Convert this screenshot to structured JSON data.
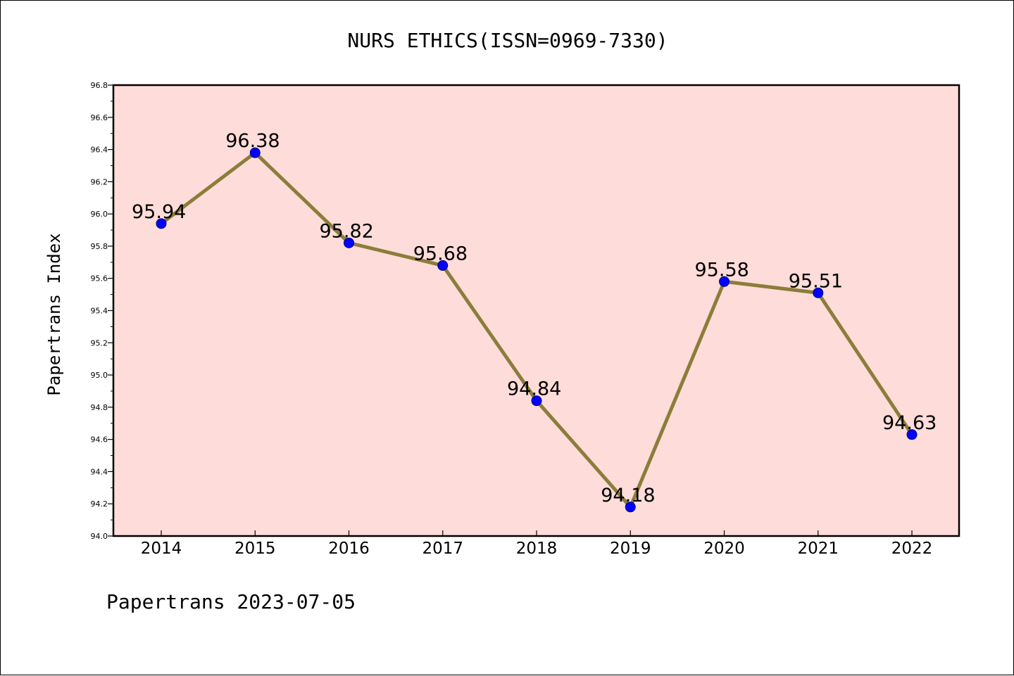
{
  "chart_data": {
    "type": "line",
    "title": "NURS ETHICS(ISSN=0969-7330)",
    "ylabel": "Papertrans Index",
    "xlabel": "",
    "footer": "Papertrans 2023-07-05",
    "categories": [
      "2014",
      "2015",
      "2016",
      "2017",
      "2018",
      "2019",
      "2020",
      "2021",
      "2022"
    ],
    "values": [
      95.94,
      96.38,
      95.82,
      95.68,
      94.84,
      94.18,
      95.58,
      95.51,
      94.63
    ],
    "data_labels": [
      "95.94",
      "96.38",
      "95.82",
      "95.68",
      "94.84",
      "94.18",
      "95.58",
      "95.51",
      "94.63"
    ],
    "ylim": [
      94.0,
      96.8
    ],
    "yticks": [
      "94.0",
      "94.2",
      "94.4",
      "94.6",
      "94.8",
      "95.0",
      "95.2",
      "95.4",
      "95.6",
      "95.8",
      "96.0",
      "96.2",
      "96.4",
      "96.6",
      "96.8"
    ],
    "grid": false,
    "colors": {
      "plot_background": "#fddcd9",
      "line": "#8b7d3a",
      "marker": "#0000ff",
      "marker_edge": "#000080"
    }
  }
}
